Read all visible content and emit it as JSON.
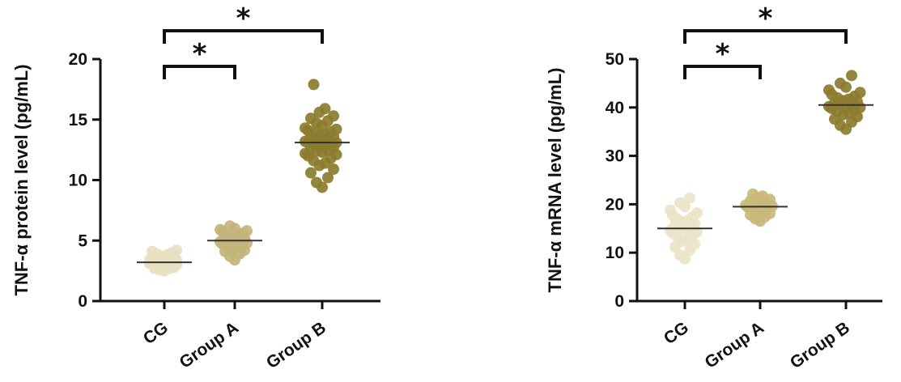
{
  "chart_data": [
    {
      "type": "scatter",
      "ylabel": "TNF-α protein level (pg/mL)",
      "categories": [
        "CG",
        "Group A",
        "Group B"
      ],
      "ylim": [
        0,
        20
      ],
      "yticks": [
        "0",
        "5",
        "10",
        "15",
        "20"
      ],
      "colors": [
        "#e8e0c2",
        "#c2b47a",
        "#8c7c2e"
      ],
      "series": [
        {
          "category": "CG",
          "mean": 3.2,
          "values": [
            2.5,
            2.6,
            2.7,
            2.7,
            2.8,
            2.8,
            2.9,
            2.9,
            3.0,
            3.0,
            3.0,
            3.1,
            3.1,
            3.1,
            3.2,
            3.2,
            3.2,
            3.2,
            3.3,
            3.3,
            3.3,
            3.4,
            3.4,
            3.4,
            3.5,
            3.5,
            3.6,
            3.6,
            3.7,
            3.7,
            3.8,
            3.9,
            4.0,
            4.1,
            4.2
          ]
        },
        {
          "category": "Group A",
          "mean": 5.0,
          "values": [
            3.4,
            3.7,
            3.9,
            4.1,
            4.2,
            4.3,
            4.4,
            4.5,
            4.6,
            4.7,
            4.8,
            4.9,
            5.0,
            5.0,
            5.1,
            5.1,
            5.2,
            5.3,
            5.4,
            5.5,
            5.6,
            5.7,
            5.8,
            5.9,
            6.0,
            6.2
          ]
        },
        {
          "category": "Group B",
          "mean": 13.1,
          "values": [
            9.4,
            9.8,
            10.2,
            10.6,
            10.9,
            11.2,
            11.4,
            11.6,
            11.8,
            12.0,
            12.1,
            12.2,
            12.3,
            12.4,
            12.5,
            12.6,
            12.7,
            12.8,
            12.9,
            13.0,
            13.0,
            13.1,
            13.1,
            13.2,
            13.2,
            13.3,
            13.4,
            13.5,
            13.6,
            13.7,
            13.8,
            13.9,
            14.0,
            14.1,
            14.2,
            14.3,
            14.5,
            14.7,
            14.9,
            15.1,
            15.3,
            15.6,
            15.9,
            17.9
          ]
        }
      ],
      "significance": [
        {
          "from": "CG",
          "to": "Group A",
          "label": "*"
        },
        {
          "from": "CG",
          "to": "Group B",
          "label": "*"
        }
      ]
    },
    {
      "type": "scatter",
      "ylabel": "TNF-α mRNA level (pg/mL)",
      "categories": [
        "CG",
        "Group A",
        "Group B"
      ],
      "ylim": [
        0,
        50
      ],
      "yticks": [
        "0",
        "10",
        "20",
        "30",
        "40",
        "50"
      ],
      "colors": [
        "#ece4c8",
        "#c8b878",
        "#8c7c2e"
      ],
      "series": [
        {
          "category": "CG",
          "mean": 15.0,
          "values": [
            8.7,
            9.5,
            10.5,
            11.2,
            11.8,
            12.3,
            12.8,
            13.2,
            13.6,
            14.0,
            14.3,
            14.6,
            14.9,
            15.1,
            15.4,
            15.7,
            16.0,
            16.3,
            16.6,
            16.9,
            17.3,
            17.7,
            18.2,
            18.8,
            19.5,
            20.3,
            21.3
          ]
        },
        {
          "category": "Group A",
          "mean": 19.5,
          "values": [
            16.5,
            17.0,
            17.4,
            17.8,
            18.1,
            18.4,
            18.7,
            19.0,
            19.2,
            19.4,
            19.6,
            19.8,
            20.0,
            20.2,
            20.4,
            20.7,
            21.0,
            21.3,
            21.7,
            22.1
          ]
        },
        {
          "category": "Group B",
          "mean": 40.5,
          "values": [
            35.5,
            36.3,
            37.0,
            37.6,
            38.1,
            38.5,
            38.9,
            39.2,
            39.5,
            39.8,
            40.0,
            40.2,
            40.4,
            40.6,
            40.8,
            41.0,
            41.2,
            41.4,
            41.7,
            42.0,
            42.3,
            42.7,
            43.1,
            43.6,
            44.2,
            45.0,
            46.6
          ]
        }
      ],
      "significance": [
        {
          "from": "CG",
          "to": "Group A",
          "label": "*"
        },
        {
          "from": "CG",
          "to": "Group B",
          "label": "*"
        }
      ]
    }
  ]
}
